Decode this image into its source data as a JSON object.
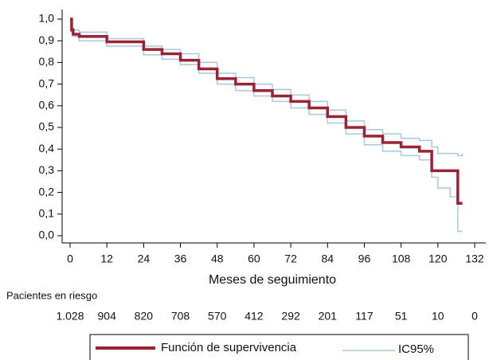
{
  "chart_data": {
    "type": "line",
    "xlabel": "Meses de seguimiento",
    "xlim": [
      0,
      132
    ],
    "xticks": [
      0,
      12,
      24,
      36,
      48,
      60,
      72,
      84,
      96,
      108,
      120,
      132
    ],
    "ylim": [
      0,
      1
    ],
    "yticks": [
      {
        "value": 0,
        "label": "0,0"
      },
      {
        "value": 0.1,
        "label": "0,1"
      },
      {
        "value": 0.2,
        "label": "0,2"
      },
      {
        "value": 0.3,
        "label": "0,3"
      },
      {
        "value": 0.4,
        "label": "0,4"
      },
      {
        "value": 0.5,
        "label": "0,5"
      },
      {
        "value": 0.6,
        "label": "0,6"
      },
      {
        "value": 0.7,
        "label": "0,7"
      },
      {
        "value": 0.8,
        "label": "0,8"
      },
      {
        "value": 0.9,
        "label": "0,9"
      },
      {
        "value": 1,
        "label": "1,0"
      }
    ],
    "step": true,
    "x": [
      0,
      0.5,
      1,
      3,
      12,
      24,
      30,
      36,
      42,
      48,
      54,
      60,
      66,
      72,
      78,
      84,
      90,
      96,
      102,
      108,
      114,
      118,
      120,
      124,
      126.5,
      128
    ],
    "series": [
      {
        "name": "Función de supervivencia",
        "color": "#9b2335",
        "values": [
          1.0,
          0.95,
          0.93,
          0.92,
          0.895,
          0.86,
          0.84,
          0.81,
          0.77,
          0.725,
          0.7,
          0.67,
          0.645,
          0.62,
          0.59,
          0.55,
          0.5,
          0.46,
          0.43,
          0.41,
          0.39,
          0.3,
          0.3,
          0.3,
          0.15,
          0.15
        ]
      },
      {
        "name": "IC95%",
        "color": "#a9c8e0",
        "lower": [
          1.0,
          0.94,
          0.92,
          0.9,
          0.875,
          0.835,
          0.815,
          0.79,
          0.75,
          0.7,
          0.67,
          0.645,
          0.62,
          0.59,
          0.56,
          0.52,
          0.47,
          0.42,
          0.39,
          0.37,
          0.35,
          0.27,
          0.22,
          0.18,
          0.02,
          0.02
        ],
        "upper": [
          1.0,
          0.96,
          0.95,
          0.94,
          0.91,
          0.875,
          0.86,
          0.84,
          0.8,
          0.75,
          0.73,
          0.7,
          0.675,
          0.65,
          0.62,
          0.58,
          0.53,
          0.49,
          0.47,
          0.45,
          0.44,
          0.41,
          0.38,
          0.38,
          0.37,
          0.38
        ]
      }
    ],
    "at_risk": {
      "title": "Pacientes en riesgo",
      "values": [
        1028,
        904,
        820,
        708,
        570,
        412,
        292,
        201,
        117,
        51,
        10,
        0
      ],
      "value_labels": [
        "1.028",
        "904",
        "820",
        "708",
        "570",
        "412",
        "292",
        "201",
        "117",
        "51",
        "10",
        "0"
      ]
    }
  }
}
